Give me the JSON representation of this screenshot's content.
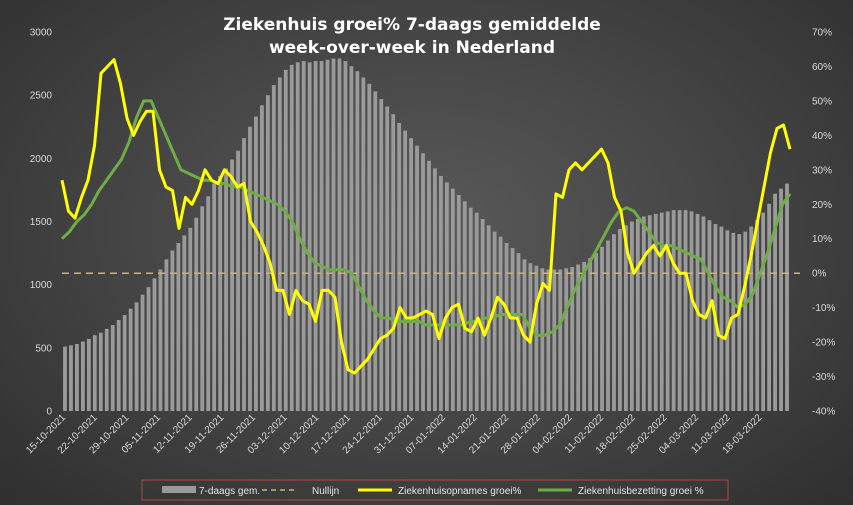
{
  "chart_data": {
    "type": "bar+line",
    "title_line1": "Ziekenhuis groei% 7-daags gemiddelde",
    "title_line2": "week-over-week in Nederland",
    "y_left": {
      "min": 0,
      "max": 3000,
      "ticks": [
        "0",
        "500",
        "1000",
        "1500",
        "2000",
        "2500",
        "3000"
      ]
    },
    "y_right": {
      "min": -40,
      "max": 70,
      "ticks": [
        "-40%",
        "-30%",
        "-20%",
        "-10%",
        "0%",
        "10%",
        "20%",
        "30%",
        "40%",
        "50%",
        "60%",
        "70%"
      ]
    },
    "x_labels": [
      "15-10-2021",
      "22-10-2021",
      "29-10-2021",
      "05-11-2021",
      "12-11-2021",
      "19-11-2021",
      "26-11-2021",
      "03-12-2021",
      "10-12-2021",
      "17-12-2021",
      "24-12-2021",
      "31-12-2021",
      "07-01-2022",
      "14-01-2022",
      "21-01-2022",
      "28-01-2022",
      "04-02-2022",
      "11-02-2022",
      "18-02-2022",
      "25-02-2022",
      "04-03-2022",
      "11-03-2022",
      "18-03-2022"
    ],
    "legend": [
      "7-daags gem.",
      "Nullijn",
      "Ziekenhuisopnames groei%",
      "Ziekenhuisbezetting groei %"
    ],
    "colors": {
      "bars": "#9a9a9a",
      "nullijn": "#c8b47a",
      "opnames": "#ffff00",
      "bezetting": "#70ad47"
    },
    "bars_7daags_gem": [
      510,
      520,
      530,
      550,
      570,
      600,
      620,
      650,
      680,
      720,
      760,
      810,
      860,
      920,
      980,
      1050,
      1120,
      1200,
      1270,
      1330,
      1390,
      1450,
      1530,
      1620,
      1700,
      1800,
      1860,
      1920,
      1990,
      2060,
      2160,
      2250,
      2330,
      2420,
      2500,
      2580,
      2640,
      2700,
      2740,
      2760,
      2770,
      2760,
      2770,
      2770,
      2780,
      2790,
      2790,
      2770,
      2730,
      2690,
      2640,
      2590,
      2530,
      2470,
      2410,
      2350,
      2280,
      2220,
      2160,
      2100,
      2040,
      1980,
      1920,
      1860,
      1810,
      1760,
      1710,
      1660,
      1610,
      1570,
      1520,
      1470,
      1420,
      1380,
      1330,
      1290,
      1250,
      1200,
      1170,
      1150,
      1130,
      1120,
      1120,
      1120,
      1130,
      1140,
      1160,
      1180,
      1210,
      1250,
      1300,
      1350,
      1400,
      1440,
      1470,
      1500,
      1520,
      1540,
      1550,
      1560,
      1570,
      1580,
      1590,
      1590,
      1590,
      1580,
      1560,
      1540,
      1510,
      1480,
      1460,
      1430,
      1410,
      1400,
      1420,
      1460,
      1510,
      1570,
      1640,
      1720,
      1760,
      1800
    ],
    "opnames_groei_pct": [
      27,
      18,
      16,
      22,
      27,
      37,
      58,
      60,
      62,
      55,
      45,
      40,
      44,
      47,
      47,
      30,
      25,
      24,
      13,
      22,
      20,
      24,
      30,
      27,
      26,
      30,
      28,
      25,
      26,
      15,
      12,
      8,
      3,
      -5,
      -5,
      -12,
      -5,
      -8,
      -9,
      -14,
      -5,
      -5,
      -7,
      -20,
      -28,
      -29,
      -27,
      -25,
      -22,
      -19,
      -18,
      -16,
      -10,
      -13,
      -13,
      -12,
      -11,
      -12,
      -19,
      -13,
      -10,
      -9,
      -16,
      -17,
      -13,
      -18,
      -13,
      -7,
      -9,
      -13,
      -13,
      -18,
      -20,
      -9,
      -3,
      -5,
      23,
      22,
      30,
      32,
      30,
      32,
      34,
      36,
      32,
      22,
      18,
      6,
      0,
      3,
      6,
      8,
      5,
      8,
      3,
      0,
      0,
      -8,
      -12,
      -13,
      -8,
      -18,
      -19,
      -13,
      -12,
      -4,
      5,
      15,
      25,
      35,
      42,
      43,
      36
    ],
    "bezetting_groei_pct": [
      10,
      12,
      15,
      17,
      20,
      24,
      27,
      30,
      33,
      38,
      45,
      50,
      50,
      45,
      40,
      35,
      30,
      29,
      28,
      27,
      27,
      26,
      26,
      25,
      25,
      24,
      23,
      22,
      21,
      20,
      18,
      15,
      10,
      6,
      3,
      2,
      1,
      1,
      1,
      0,
      -4,
      -8,
      -11,
      -13,
      -13,
      -14,
      -14,
      -14,
      -14,
      -15,
      -15,
      -15,
      -15,
      -15,
      -15,
      -14,
      -14,
      -13,
      -13,
      -12,
      -12,
      -12,
      -12,
      -16,
      -18,
      -18,
      -17,
      -15,
      -10,
      -5,
      -1,
      3,
      7,
      11,
      15,
      18,
      19,
      18,
      15,
      12,
      9,
      8,
      8,
      7,
      6,
      5,
      4,
      0,
      -4,
      -7,
      -8,
      -10,
      -9,
      -6,
      0,
      6,
      13,
      20,
      23
    ]
  }
}
